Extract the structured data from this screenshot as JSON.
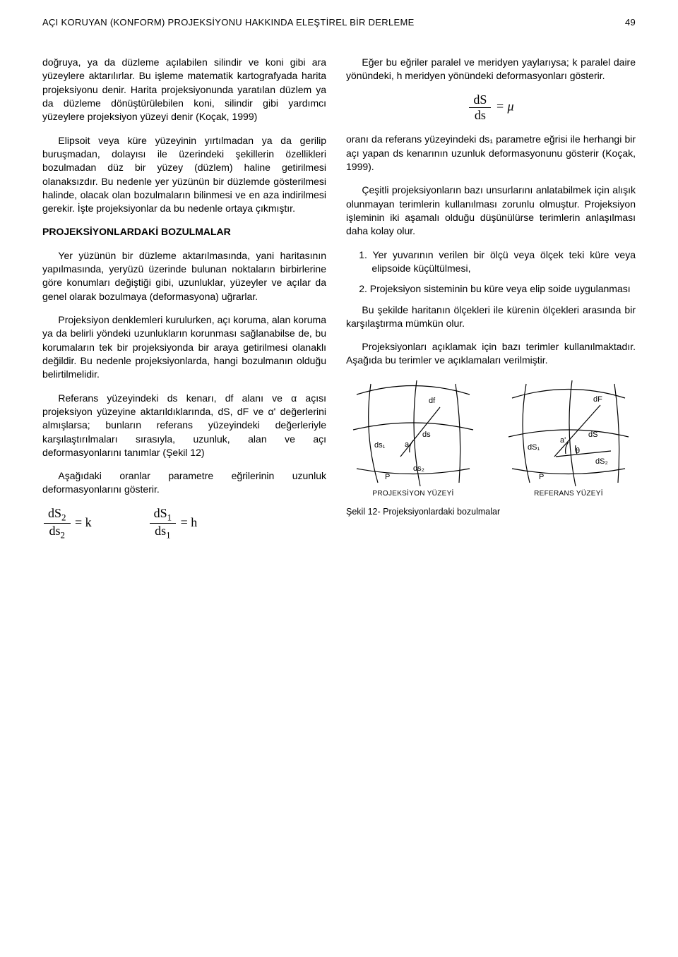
{
  "header": {
    "running_title": "AÇI KORUYAN (KONFORM) PROJEKSİYONU HAKKINDA ELEŞTİREL BİR DERLEME",
    "page_number": "49"
  },
  "left": {
    "p1": "doğruya, ya da düzleme açılabilen silindir ve koni gibi ara yüzeylere aktarılırlar. Bu işleme matematik kartografyada harita projeksiyonu denir. Harita projeksiyonunda yaratılan düzlem ya da düzleme dönüştürülebilen koni, silindir gibi yardımcı yüzeylere projeksiyon yüzeyi denir (Koçak, 1999)",
    "p2": "Elipsoit veya küre yüzeyinin yırtılmadan ya da gerilip buruşmadan, dolayısı ile üzerindeki şekillerin özellikleri bozulmadan düz bir yüzey (düzlem) haline getirilmesi olanaksızdır. Bu nedenle yer yüzünün bir düzlemde gösterilmesi halinde, olacak olan bozulmaların bilinmesi ve en aza indirilmesi gerekir. İşte projeksiyonlar da bu nedenle ortaya çıkmıştır.",
    "section_title": "PROJEKSİYONLARDAKİ BOZULMALAR",
    "p3": "Yer yüzünün bir düzleme aktarılmasında, yani haritasının yapılmasında, yeryüzü üzerinde bulunan noktaların birbirlerine göre konumları değiştiği gibi, uzunluklar, yüzeyler ve açılar da genel olarak bozulmaya (deformasyona) uğrarlar.",
    "p4": "Projeksiyon denklemleri kurulurken, açı koruma, alan koruma ya da belirli yöndeki uzunlukların korunması sağlanabilse de, bu korumaların tek bir projeksiyonda bir araya getirilmesi olanaklı değildir. Bu nedenle projeksiyonlarda, hangi bozulmanın olduğu belirtilmelidir.",
    "p5": "Referans yüzeyindeki ds kenarı, df alanı ve α açısı projeksiyon yüzeyine aktarıldıklarında, dS, dF ve α' değerlerini almışlarsa; bunların referans yüzeyindeki değerleriyle karşılaştırılmaları sırasıyla, uzunluk, alan ve açı deformasyonlarını tanımlar (Şekil 12)",
    "p6": "Aşağıdaki oranlar parametre eğrilerinin uzunluk deformasyonlarını gösterir.",
    "eq1": {
      "num": "dS<sub>2</sub>",
      "den": "ds<sub>2</sub>",
      "rhs": "= k"
    },
    "eq2": {
      "num": "dS<sub>1</sub>",
      "den": "ds<sub>1</sub>",
      "rhs": "= h"
    }
  },
  "right": {
    "p1": "Eğer bu eğriler paralel ve meridyen yaylarıysa; k paralel daire yönündeki, h meridyen yönündeki deformasyonları gösterir.",
    "eq_mu": {
      "num": "dS",
      "den": "ds",
      "rhs": "= μ"
    },
    "p2": "oranı da referans yüzeyindeki ds₁ parametre eğrisi ile herhangi bir açı yapan ds kenarının uzunluk deformasyonunu gösterir (Koçak, 1999).",
    "p3": "Çeşitli projeksiyonların bazı unsurlarını anlatabilmek için alışık olunmayan terimlerin kullanılması zorunlu olmuştur. Projeksiyon işleminin iki aşamalı olduğu düşünülürse terimlerin anlaşılması daha kolay olur.",
    "li1": "1. Yer yuvarının verilen bir ölçü veya ölçek teki küre veya elipsoide küçültülmesi,",
    "li2": "2. Projeksiyon sisteminin bu küre veya elip soide uygulanması",
    "p4": "Bu şekilde haritanın ölçekleri ile kürenin ölçekleri arasında bir karşılaştırma mümkün olur.",
    "p5": "Projeksiyonları açıklamak için bazı terimler kullanılmaktadır. Aşağıda bu terimler ve açıklamaları verilmiştir.",
    "fig_left_label": "PROJEKSİYON YÜZEYİ",
    "fig_right_label": "REFERANS YÜZEYİ",
    "figure_caption": "Şekil 12- Projeksiyonlardaki bozulmalar",
    "diagram": {
      "left_panel": {
        "P": "P",
        "ds1": "ds₁",
        "ds2": "ds₂",
        "ds": "ds",
        "df": "df",
        "a": "a"
      },
      "right_panel": {
        "P": "P",
        "dS1": "dS₁",
        "dS2": "dS₂",
        "dS": "dS",
        "dF": "dF",
        "a_prime": "a'",
        "theta": "θ"
      }
    }
  }
}
